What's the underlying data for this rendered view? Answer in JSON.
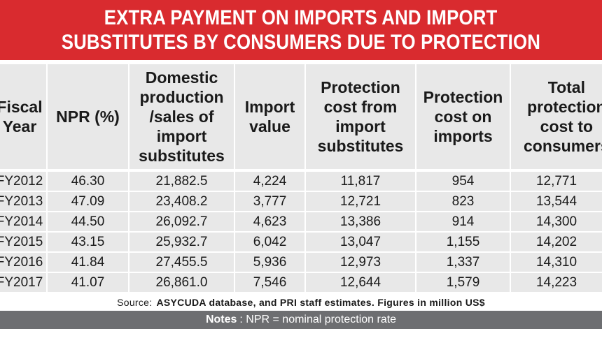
{
  "banner": {
    "line1": "EXTRA PAYMENT ON IMPORTS AND IMPORT",
    "line2": "SUBSTITUTES BY CONSUMERS DUE TO PROTECTION",
    "color": "#d92b2f"
  },
  "chart_data": {
    "type": "table",
    "title": "EXTRA PAYMENT ON IMPORTS AND IMPORT SUBSTITUTES BY CONSUMERS DUE TO PROTECTION",
    "columns": [
      "Fiscal Year",
      "NPR (%)",
      "Domestic production /sales of import substitutes",
      "Import value",
      "Protection cost from import substitutes",
      "Protection cost on imports",
      "Total protection cost to consumers"
    ],
    "header_lines": [
      [
        "Fiscal",
        "Year"
      ],
      [
        "NPR (%)"
      ],
      [
        "Domestic",
        "production",
        "/sales of",
        "import",
        "substitutes"
      ],
      [
        "Import",
        "value"
      ],
      [
        "Protection",
        "cost from",
        "import",
        "substitutes"
      ],
      [
        "Protection",
        "cost on",
        "imports"
      ],
      [
        "Total",
        "protection",
        "cost to",
        "consumers"
      ]
    ],
    "rows": [
      [
        "FY2012",
        "46.30",
        "21,882.5",
        "4,224",
        "11,817",
        "954",
        "12,771"
      ],
      [
        "FY2013",
        "47.09",
        "23,408.2",
        "3,777",
        "12,721",
        "823",
        "13,544"
      ],
      [
        "FY2014",
        "44.50",
        "26,092.7",
        "4,623",
        "13,386",
        "914",
        "14,300"
      ],
      [
        "FY2015",
        "43.15",
        "25,932.7",
        "6,042",
        "13,047",
        "1,155",
        "14,202"
      ],
      [
        "FY2016",
        "41.84",
        "27,455.5",
        "5,936",
        "12,973",
        "1,337",
        "14,310"
      ],
      [
        "FY2017",
        "41.07",
        "26,861.0",
        "7,546",
        "12,644",
        "1,579",
        "14,223"
      ]
    ]
  },
  "source": {
    "label": "Source:",
    "text": "ASYCUDA database, and PRI staff estimates. Figures in million US$"
  },
  "notes": {
    "label": "Notes",
    "text": ": NPR = nominal protection rate",
    "color": "#6d6e71"
  }
}
